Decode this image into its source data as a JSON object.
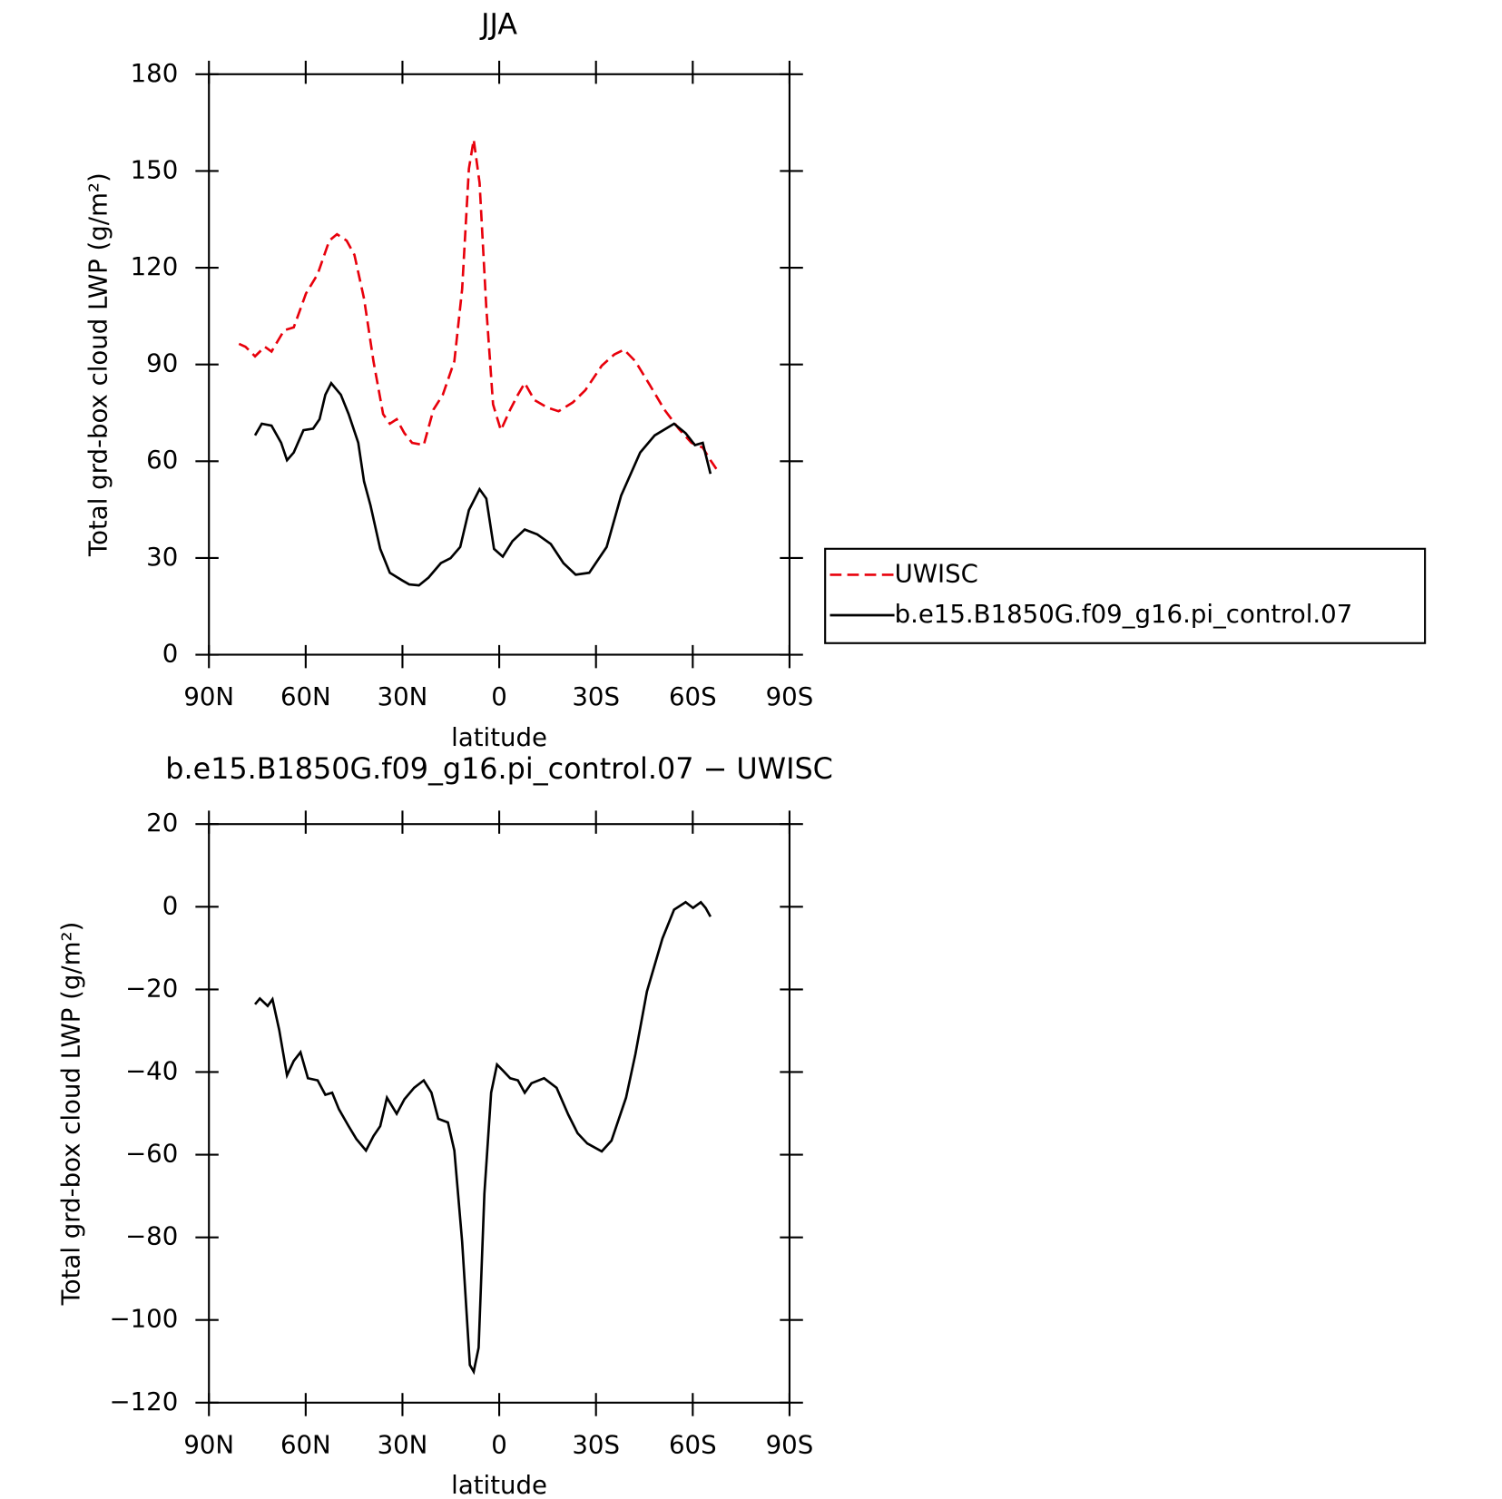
{
  "chart_data": [
    {
      "type": "line",
      "title": "JJA",
      "xlabel": "latitude",
      "ylabel": "Total grd-box cloud LWP (g/m²)",
      "xlim": [
        90,
        -90
      ],
      "xticks": [
        {
          "value": 90,
          "label": "90N"
        },
        {
          "value": 60,
          "label": "60N"
        },
        {
          "value": 30,
          "label": "30N"
        },
        0,
        {
          "value": -30,
          "label": "30S"
        },
        {
          "value": -60,
          "label": "60S"
        },
        {
          "value": -90,
          "label": "90S"
        }
      ],
      "ylim": [
        0,
        180
      ],
      "yticks": [
        0,
        30,
        60,
        90,
        120,
        150,
        180
      ],
      "legend": "right",
      "series": [
        {
          "name": "UWISC",
          "color": "#e8000b",
          "dashed": true,
          "x": [
            80.7,
            78.7,
            75.7,
            72.7,
            70.6,
            66.7,
            63.7,
            59.9,
            56.3,
            52.7,
            50.3,
            47.3,
            44.9,
            41.9,
            39,
            36,
            33.9,
            31.8,
            29.4,
            27,
            23.4,
            20.4,
            17.5,
            13.9,
            11.5,
            9.4,
            7.9,
            6.1,
            4,
            1.9,
            -0.5,
            -3.4,
            -5.8,
            -7.9,
            -10.9,
            -14.8,
            -18.4,
            -22.8,
            -26.7,
            -31.8,
            -35.7,
            -38.7,
            -42.2,
            -46.7,
            -51.2,
            -55.7,
            -59.6,
            -63.1,
            -65.5,
            -67.3
          ],
          "values": [
            96.4,
            95.5,
            92.5,
            95.5,
            94,
            100.6,
            101.5,
            112,
            118,
            128.4,
            130.4,
            128.4,
            124,
            110.4,
            91,
            74.6,
            71.6,
            73,
            68.7,
            65.7,
            65,
            76,
            80.6,
            91,
            113.4,
            150.7,
            159.7,
            146.3,
            107.5,
            77.6,
            69.6,
            76,
            80.6,
            84.2,
            79,
            76.7,
            75.5,
            78.2,
            82,
            89.6,
            93.1,
            94.6,
            91,
            83.6,
            76,
            70,
            65.7,
            64.2,
            60.3,
            57.6
          ]
        },
        {
          "name": "b.e15.B1850G.f09_g16.pi_control.07",
          "color": "#000000",
          "dashed": false,
          "x": [
            75.7,
            73.6,
            70.6,
            67.6,
            65.8,
            63.7,
            60.7,
            57.7,
            55.7,
            53.9,
            52.1,
            49.1,
            46.7,
            43.7,
            41.9,
            39.9,
            36.9,
            33.9,
            30,
            27.9,
            24.9,
            21.9,
            18.1,
            15.1,
            12.1,
            9.4,
            6.1,
            4,
            1.6,
            -1.1,
            -4.1,
            -7.9,
            -11.8,
            -16,
            -19.9,
            -23.7,
            -27.9,
            -33.3,
            -37.8,
            -43.7,
            -48.2,
            -54.2,
            -57.8,
            -60.7,
            -63.1,
            -65.5
          ],
          "values": [
            68,
            71.6,
            71,
            65.7,
            60.3,
            62.7,
            69.6,
            70.1,
            73,
            80.6,
            84.2,
            80.6,
            74.6,
            65.7,
            53.7,
            46.3,
            32.8,
            25.4,
            23,
            21.8,
            21.5,
            23.9,
            28.4,
            29.9,
            33.4,
            44.8,
            51.3,
            48.4,
            32.8,
            30.4,
            35.2,
            38.8,
            37.3,
            34.3,
            28.4,
            24.8,
            25.4,
            33.4,
            49.3,
            62.7,
            68,
            71.6,
            68.7,
            65,
            65.7,
            56.1
          ]
        }
      ]
    },
    {
      "type": "line",
      "title": "b.e15.B1850G.f09_g16.pi_control.07 − UWISC",
      "xlabel": "latitude",
      "ylabel": "Total grd-box cloud LWP (g/m²)",
      "xlim": [
        90,
        -90
      ],
      "xticks": [
        {
          "value": 90,
          "label": "90N"
        },
        {
          "value": 60,
          "label": "60N"
        },
        {
          "value": 30,
          "label": "30N"
        },
        0,
        {
          "value": -30,
          "label": "30S"
        },
        {
          "value": -60,
          "label": "60S"
        },
        {
          "value": -90,
          "label": "90S"
        }
      ],
      "ylim": [
        -120,
        20
      ],
      "yticks": [
        {
          "value": -120,
          "label": "−120"
        },
        {
          "value": -100,
          "label": "−100"
        },
        {
          "value": -80,
          "label": "−80"
        },
        {
          "value": -60,
          "label": "−60"
        },
        {
          "value": -40,
          "label": "−40"
        },
        {
          "value": -20,
          "label": "−20"
        },
        0,
        20
      ],
      "series": [
        {
          "color": "#000000",
          "dashed": false,
          "x": [
            75.7,
            74.2,
            71.8,
            70.3,
            68.2,
            65.8,
            63.7,
            61.6,
            59.3,
            56.3,
            53.9,
            51.8,
            49.7,
            46.7,
            44.3,
            41.3,
            39,
            36.9,
            34.8,
            31.8,
            29.4,
            26.4,
            23.4,
            21,
            18.9,
            15.9,
            13.9,
            11.5,
            9.1,
            7.9,
            6.4,
            4.6,
            2.5,
            0.7,
            -1.1,
            -3.4,
            -5.8,
            -7.9,
            -10,
            -13.9,
            -17.8,
            -21.4,
            -24.3,
            -27.3,
            -31.8,
            -34.8,
            -39.3,
            -42.2,
            -45.8,
            -50.6,
            -54.2,
            -57.8,
            -60.1,
            -62.5,
            -64,
            -65.5
          ],
          "values": [
            -23.6,
            -22.2,
            -24,
            -22.4,
            -29.8,
            -40.8,
            -37.3,
            -35.2,
            -41.5,
            -42,
            -45.5,
            -45,
            -49,
            -53.1,
            -56.2,
            -59,
            -55.5,
            -53.1,
            -46.2,
            -50.1,
            -46.6,
            -43.8,
            -42,
            -45,
            -51.3,
            -52.2,
            -59,
            -81.1,
            -110.9,
            -112.5,
            -106.7,
            -69.4,
            -45,
            -38.2,
            -39.6,
            -41.5,
            -42,
            -45,
            -42.7,
            -41.5,
            -43.8,
            -50.3,
            -54.8,
            -57.3,
            -59.2,
            -56.6,
            -46.2,
            -35.7,
            -20.5,
            -7.7,
            -0.7,
            1.1,
            -0.3,
            1.1,
            -0.3,
            -2.4
          ]
        }
      ]
    }
  ]
}
